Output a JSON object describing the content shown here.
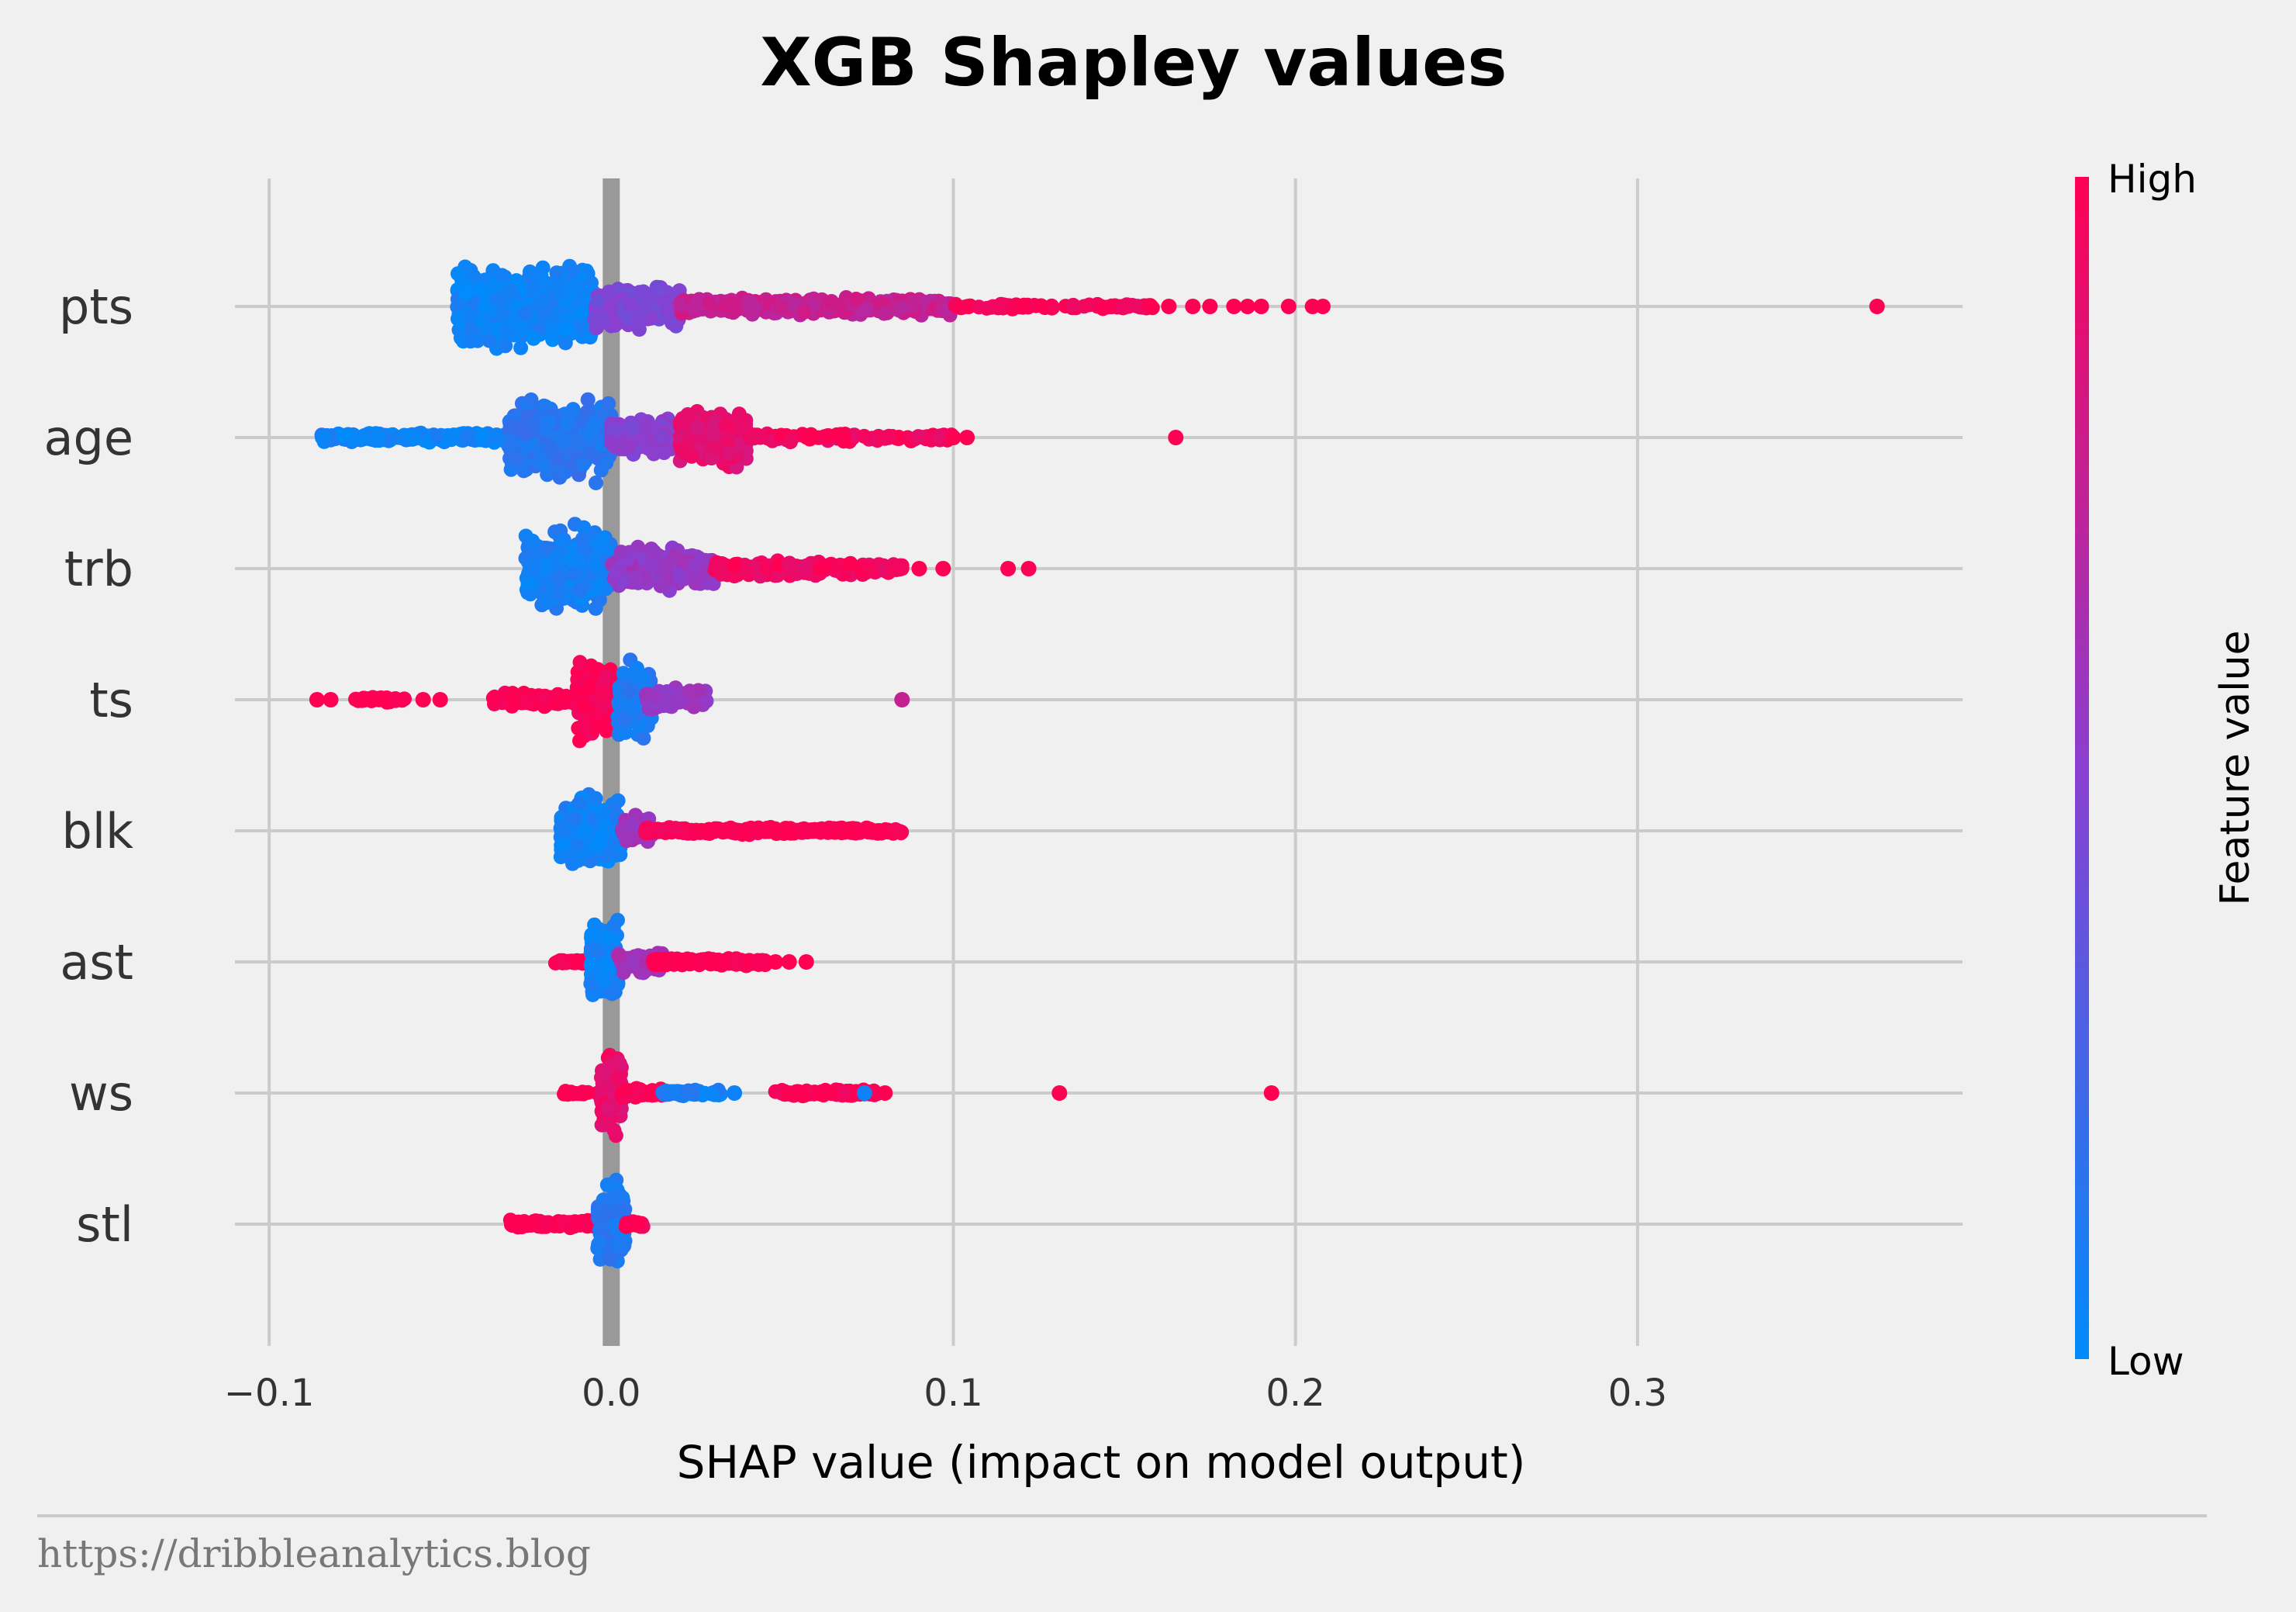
{
  "chart_data": {
    "type": "scatter",
    "title": "XGB Shapley values",
    "xlabel": "SHAP value (impact on model output)",
    "ylabel": "",
    "xlim": [
      -0.11,
      0.395
    ],
    "xticks": [
      -0.1,
      0.0,
      0.1,
      0.2,
      0.3
    ],
    "xtick_labels": [
      "−0.1",
      "0.0",
      "0.1",
      "0.2",
      "0.3"
    ],
    "grid": true,
    "features": [
      "pts",
      "age",
      "trb",
      "ts",
      "blk",
      "ast",
      "ws",
      "stl"
    ],
    "colorbar": {
      "label": "Feature value",
      "high_label": "High",
      "low_label": "Low",
      "low_color": "#008bfb",
      "mid_color": "#8a3fd0",
      "high_color": "#ff0052"
    },
    "series": [
      {
        "feature": "pts",
        "ranges": [
          {
            "from": -0.045,
            "to": -0.005,
            "color_value": 0.05,
            "count": 520,
            "spread": 1.0
          },
          {
            "from": -0.005,
            "to": 0.02,
            "color_value": 0.45,
            "count": 220,
            "spread": 0.55
          },
          {
            "from": 0.02,
            "to": 0.1,
            "color_value": 0.75,
            "count": 380,
            "spread": 0.22
          },
          {
            "from": 0.1,
            "to": 0.16,
            "color_value": 0.98,
            "count": 90,
            "spread": 0.06
          }
        ],
        "points": [
          {
            "x": 0.163,
            "c": 1.0
          },
          {
            "x": 0.17,
            "c": 1.0
          },
          {
            "x": 0.175,
            "c": 1.0
          },
          {
            "x": 0.182,
            "c": 1.0
          },
          {
            "x": 0.186,
            "c": 1.0
          },
          {
            "x": 0.19,
            "c": 1.0
          },
          {
            "x": 0.198,
            "c": 1.0
          },
          {
            "x": 0.205,
            "c": 1.0
          },
          {
            "x": 0.208,
            "c": 1.0
          },
          {
            "x": 0.37,
            "c": 1.0
          }
        ]
      },
      {
        "feature": "age",
        "ranges": [
          {
            "from": -0.085,
            "to": -0.03,
            "color_value": 0.05,
            "count": 220,
            "spread": 0.12
          },
          {
            "from": -0.03,
            "to": 0.0,
            "color_value": 0.15,
            "count": 380,
            "spread": 1.0
          },
          {
            "from": 0.0,
            "to": 0.025,
            "color_value": 0.5,
            "count": 250,
            "spread": 0.45
          },
          {
            "from": 0.02,
            "to": 0.04,
            "color_value": 0.88,
            "count": 260,
            "spread": 0.7
          },
          {
            "from": 0.04,
            "to": 0.1,
            "color_value": 0.95,
            "count": 120,
            "spread": 0.12
          }
        ],
        "points": [
          {
            "x": 0.1,
            "c": 1.0
          },
          {
            "x": 0.104,
            "c": 1.0
          },
          {
            "x": 0.165,
            "c": 1.0
          }
        ]
      },
      {
        "feature": "trb",
        "ranges": [
          {
            "from": -0.025,
            "to": 0.0,
            "color_value": 0.08,
            "count": 330,
            "spread": 1.0
          },
          {
            "from": 0.0,
            "to": 0.03,
            "color_value": 0.55,
            "count": 220,
            "spread": 0.55
          },
          {
            "from": 0.03,
            "to": 0.085,
            "color_value": 0.95,
            "count": 200,
            "spread": 0.2
          }
        ],
        "points": [
          {
            "x": 0.09,
            "c": 1.0
          },
          {
            "x": 0.097,
            "c": 1.0
          },
          {
            "x": 0.116,
            "c": 1.0
          },
          {
            "x": 0.122,
            "c": 1.0
          }
        ]
      },
      {
        "feature": "ts",
        "ranges": [
          {
            "from": -0.075,
            "to": -0.06,
            "color_value": 1.0,
            "count": 40,
            "spread": 0.08
          },
          {
            "from": -0.035,
            "to": -0.01,
            "color_value": 1.0,
            "count": 90,
            "spread": 0.18
          },
          {
            "from": -0.01,
            "to": 0.003,
            "color_value": 0.98,
            "count": 220,
            "spread": 0.95
          },
          {
            "from": 0.002,
            "to": 0.012,
            "color_value": 0.1,
            "count": 180,
            "spread": 0.9
          },
          {
            "from": 0.01,
            "to": 0.028,
            "color_value": 0.55,
            "count": 70,
            "spread": 0.3
          }
        ],
        "points": [
          {
            "x": -0.086,
            "c": 1.0
          },
          {
            "x": -0.082,
            "c": 1.0
          },
          {
            "x": -0.05,
            "c": 1.0
          },
          {
            "x": -0.055,
            "c": 1.0
          },
          {
            "x": 0.085,
            "c": 0.75
          }
        ]
      },
      {
        "feature": "blk",
        "ranges": [
          {
            "from": -0.015,
            "to": 0.003,
            "color_value": 0.06,
            "count": 260,
            "spread": 1.0
          },
          {
            "from": 0.003,
            "to": 0.012,
            "color_value": 0.6,
            "count": 80,
            "spread": 0.4
          },
          {
            "from": 0.01,
            "to": 0.085,
            "color_value": 1.0,
            "count": 330,
            "spread": 0.09
          }
        ],
        "points": []
      },
      {
        "feature": "ast",
        "ranges": [
          {
            "from": -0.017,
            "to": -0.007,
            "color_value": 1.0,
            "count": 30,
            "spread": 0.05
          },
          {
            "from": -0.006,
            "to": 0.002,
            "color_value": 0.06,
            "count": 200,
            "spread": 1.0
          },
          {
            "from": 0.002,
            "to": 0.015,
            "color_value": 0.6,
            "count": 70,
            "spread": 0.3
          },
          {
            "from": 0.012,
            "to": 0.045,
            "color_value": 1.0,
            "count": 230,
            "spread": 0.1
          }
        ],
        "points": [
          {
            "x": 0.048,
            "c": 1.0
          },
          {
            "x": 0.052,
            "c": 1.0
          },
          {
            "x": 0.057,
            "c": 1.0
          }
        ]
      },
      {
        "feature": "ws",
        "ranges": [
          {
            "from": -0.014,
            "to": -0.002,
            "color_value": 1.0,
            "count": 30,
            "spread": 0.05
          },
          {
            "from": -0.003,
            "to": 0.003,
            "color_value": 0.9,
            "count": 150,
            "spread": 1.0
          },
          {
            "from": 0.003,
            "to": 0.015,
            "color_value": 1.0,
            "count": 60,
            "spread": 0.12
          },
          {
            "from": 0.015,
            "to": 0.032,
            "color_value": 0.08,
            "count": 70,
            "spread": 0.08
          },
          {
            "from": 0.048,
            "to": 0.078,
            "color_value": 1.0,
            "count": 120,
            "spread": 0.09
          }
        ],
        "points": [
          {
            "x": 0.036,
            "c": 0.05
          },
          {
            "x": 0.074,
            "c": 0.05
          },
          {
            "x": 0.08,
            "c": 1.0
          },
          {
            "x": 0.131,
            "c": 1.0
          },
          {
            "x": 0.193,
            "c": 1.0
          }
        ]
      },
      {
        "feature": "stl",
        "ranges": [
          {
            "from": -0.03,
            "to": -0.002,
            "color_value": 1.0,
            "count": 130,
            "spread": 0.1
          },
          {
            "from": -0.004,
            "to": 0.004,
            "color_value": 0.12,
            "count": 170,
            "spread": 1.0
          },
          {
            "from": 0.004,
            "to": 0.01,
            "color_value": 1.0,
            "count": 30,
            "spread": 0.08
          }
        ],
        "points": []
      }
    ]
  },
  "footer": {
    "source": "https://dribbleanalytics.blog"
  }
}
